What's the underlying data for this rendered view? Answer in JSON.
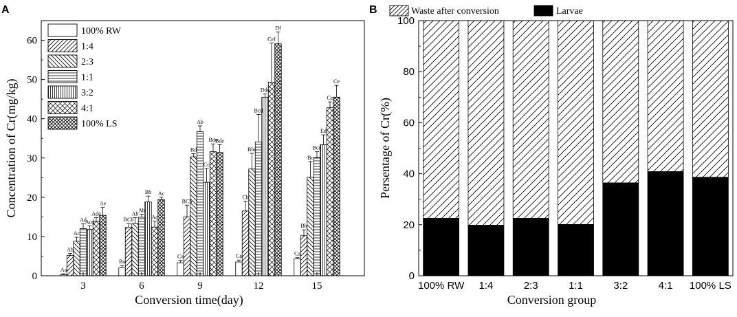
{
  "panelA": {
    "letter": "A",
    "chart_data": {
      "type": "bar",
      "xlabel": "Conversion time(day)",
      "ylabel": "Concentration of Cr(mg/kg)",
      "ylim": [
        0,
        65
      ],
      "yticks": [
        0,
        10,
        20,
        30,
        40,
        50,
        60
      ],
      "categories": [
        "3",
        "6",
        "9",
        "12",
        "15"
      ],
      "series": [
        {
          "name": "100% RW",
          "pattern": "blank",
          "values": [
            0.3,
            2.0,
            3.3,
            3.5,
            4.3
          ],
          "errors": [
            0.2,
            0.6,
            0.6,
            0.5,
            0.3
          ],
          "labels": [
            "Aa",
            "Ba",
            "Ca",
            "Ca",
            "Ca"
          ]
        },
        {
          "name": "1:4",
          "pattern": "diag-up",
          "values": [
            5.2,
            12.3,
            15.0,
            16.5,
            10.2
          ],
          "errors": [
            0.5,
            1.0,
            3.0,
            2.5,
            1.5
          ],
          "labels": [
            "Ab",
            "BCb",
            "BCb",
            "Cb",
            "Bb"
          ]
        },
        {
          "name": "2:3",
          "pattern": "diag-down",
          "values": [
            8.8,
            13.3,
            30.3,
            27.2,
            25.1
          ],
          "errors": [
            1.0,
            1.5,
            0.8,
            4.0,
            4.0
          ],
          "labels": [
            "Ac",
            "Ab",
            "Bd",
            "Bbc",
            "Bc"
          ]
        },
        {
          "name": "1:1",
          "pattern": "horizontal",
          "values": [
            12.0,
            14.9,
            36.7,
            34.1,
            30.1
          ],
          "errors": [
            1.2,
            0.8,
            1.5,
            7.0,
            1.5
          ],
          "labels": [
            "Ad",
            "Ab",
            "Ab",
            "Bcd",
            "Bcd"
          ]
        },
        {
          "name": "3:2",
          "pattern": "vertical",
          "values": [
            11.8,
            18.8,
            23.8,
            45.5,
            33.4
          ],
          "errors": [
            0.9,
            1.5,
            3.5,
            0.8,
            2.5
          ],
          "labels": [
            "Acd",
            "Bb",
            "Cc",
            "Dde",
            "Ed"
          ]
        },
        {
          "name": "4:1",
          "pattern": "cross-diag",
          "values": [
            13.8,
            12.4,
            31.6,
            49.3,
            42.8
          ],
          "errors": [
            1.0,
            1.5,
            2.0,
            10.0,
            1.5
          ],
          "labels": [
            "Ade",
            "Ac",
            "Bde",
            "Cef",
            "Ce"
          ]
        },
        {
          "name": "100% LS",
          "pattern": "cross-dense",
          "values": [
            15.4,
            19.4,
            31.4,
            59.1,
            45.5
          ],
          "errors": [
            2.0,
            0.6,
            2.0,
            3.0,
            3.0
          ],
          "labels": [
            "Ae",
            "Ac",
            "Bde",
            "Df",
            "Ce"
          ]
        }
      ]
    }
  },
  "panelB": {
    "letter": "B",
    "chart_data": {
      "type": "bar",
      "stacked": true,
      "xlabel": "Conversion group",
      "ylabel": "Persentage of Cr(%)",
      "ylim": [
        0,
        100
      ],
      "yticks": [
        0,
        20,
        40,
        60,
        80,
        100
      ],
      "categories": [
        "100% RW",
        "1:4",
        "2:3",
        "1:1",
        "3:2",
        "4:1",
        "100% LS"
      ],
      "series": [
        {
          "name": "Larvae",
          "color": "#000000",
          "values": [
            22.5,
            19.8,
            22.5,
            20.1,
            36.4,
            40.8,
            38.6
          ]
        },
        {
          "name": "Waste after conversion",
          "pattern": "diag-up",
          "values": [
            77.5,
            80.2,
            77.5,
            79.9,
            63.6,
            59.2,
            61.4
          ]
        }
      ],
      "legend_order": [
        "Waste after conversion",
        "Larvae"
      ]
    }
  }
}
